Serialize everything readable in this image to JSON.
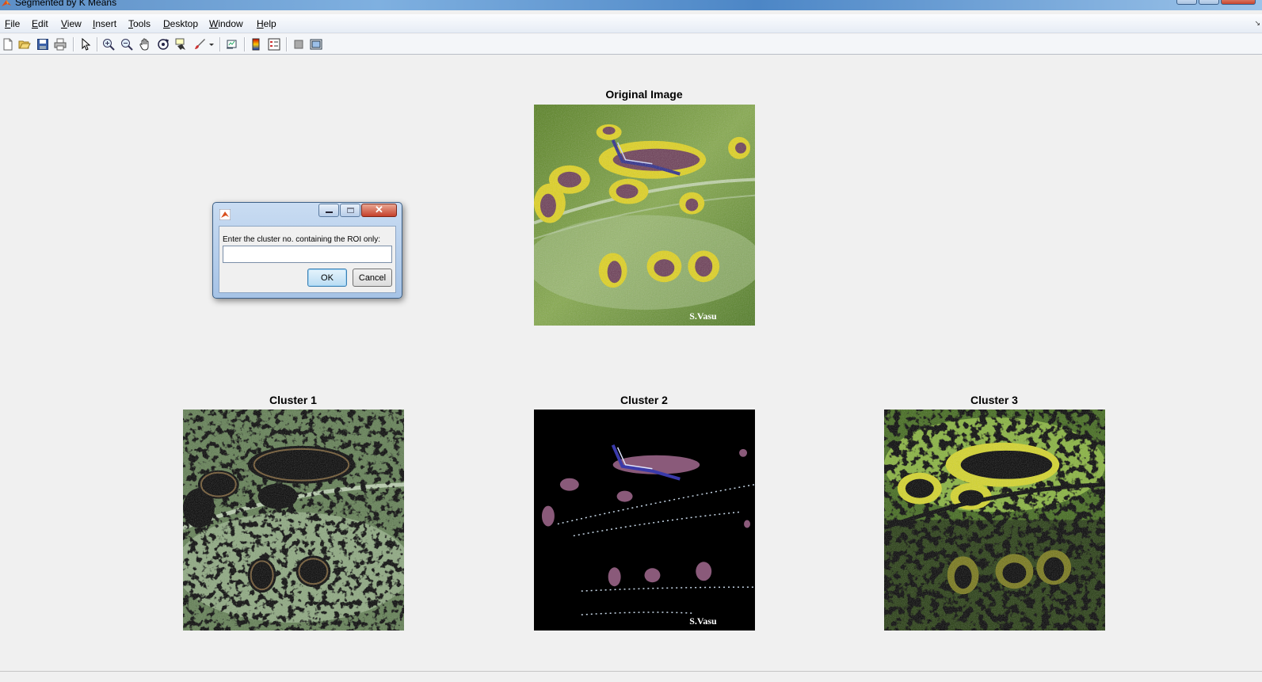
{
  "window": {
    "title": "Segmented by K Means"
  },
  "menu": {
    "items": [
      "File",
      "Edit",
      "View",
      "Insert",
      "Tools",
      "Desktop",
      "Window",
      "Help"
    ]
  },
  "toolbar": {
    "icons": [
      "new-figure-icon",
      "open-file-icon",
      "save-icon",
      "print-icon",
      "edit-plot-icon",
      "zoom-in-icon",
      "zoom-out-icon",
      "pan-icon",
      "rotate-3d-icon",
      "data-cursor-icon",
      "brush-icon",
      "link-plot-icon",
      "colorbar-icon",
      "legend-icon",
      "hide-plot-tools-icon",
      "show-plot-tools-icon"
    ]
  },
  "axes": {
    "original": {
      "title": "Original Image",
      "watermark": "S.Vasu"
    },
    "cluster1": {
      "title": "Cluster 1"
    },
    "cluster2": {
      "title": "Cluster 2",
      "watermark": "S.Vasu"
    },
    "cluster3": {
      "title": "Cluster 3"
    }
  },
  "dialog": {
    "prompt": "Enter the cluster no. containing the ROI only:",
    "input_value": "",
    "ok_label": "OK",
    "cancel_label": "Cancel"
  },
  "colors": {
    "leaf_green": "#6e9a2c",
    "lesion_yellow": "#d8d020",
    "lesion_purple": "#5a3a6a",
    "cluster_background": "#000000"
  }
}
